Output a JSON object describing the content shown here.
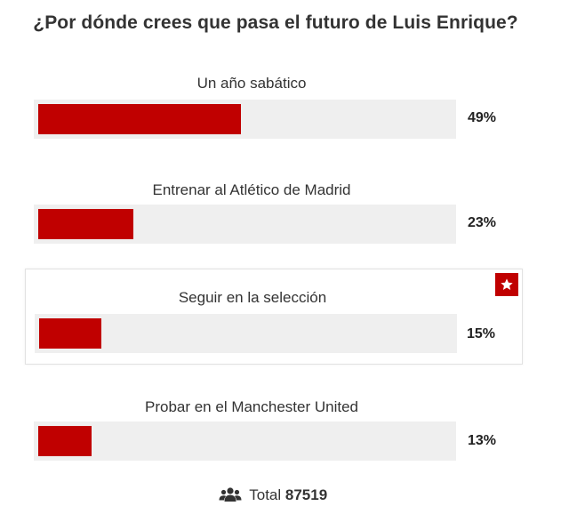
{
  "poll": {
    "question": "¿Por dónde crees que pasa el futuro de Luis Enrique?",
    "options": [
      {
        "label": "Un año sabático",
        "percent_label": "49%",
        "percent": 49,
        "selected": false
      },
      {
        "label": "Entrenar al Atlético de Madrid",
        "percent_label": "23%",
        "percent": 23,
        "selected": false
      },
      {
        "label": "Seguir en la selección",
        "percent_label": "15%",
        "percent": 15,
        "selected": true
      },
      {
        "label": "Probar en el Manchester United",
        "percent_label": "13%",
        "percent": 13,
        "selected": false
      }
    ],
    "total_label": "Total",
    "total_count": "87519"
  },
  "colors": {
    "bar_fill": "#c00000",
    "bar_track": "#efefef",
    "star_badge": "#c00000"
  },
  "icons": {
    "selected_badge": "star-icon",
    "total": "users-icon"
  }
}
